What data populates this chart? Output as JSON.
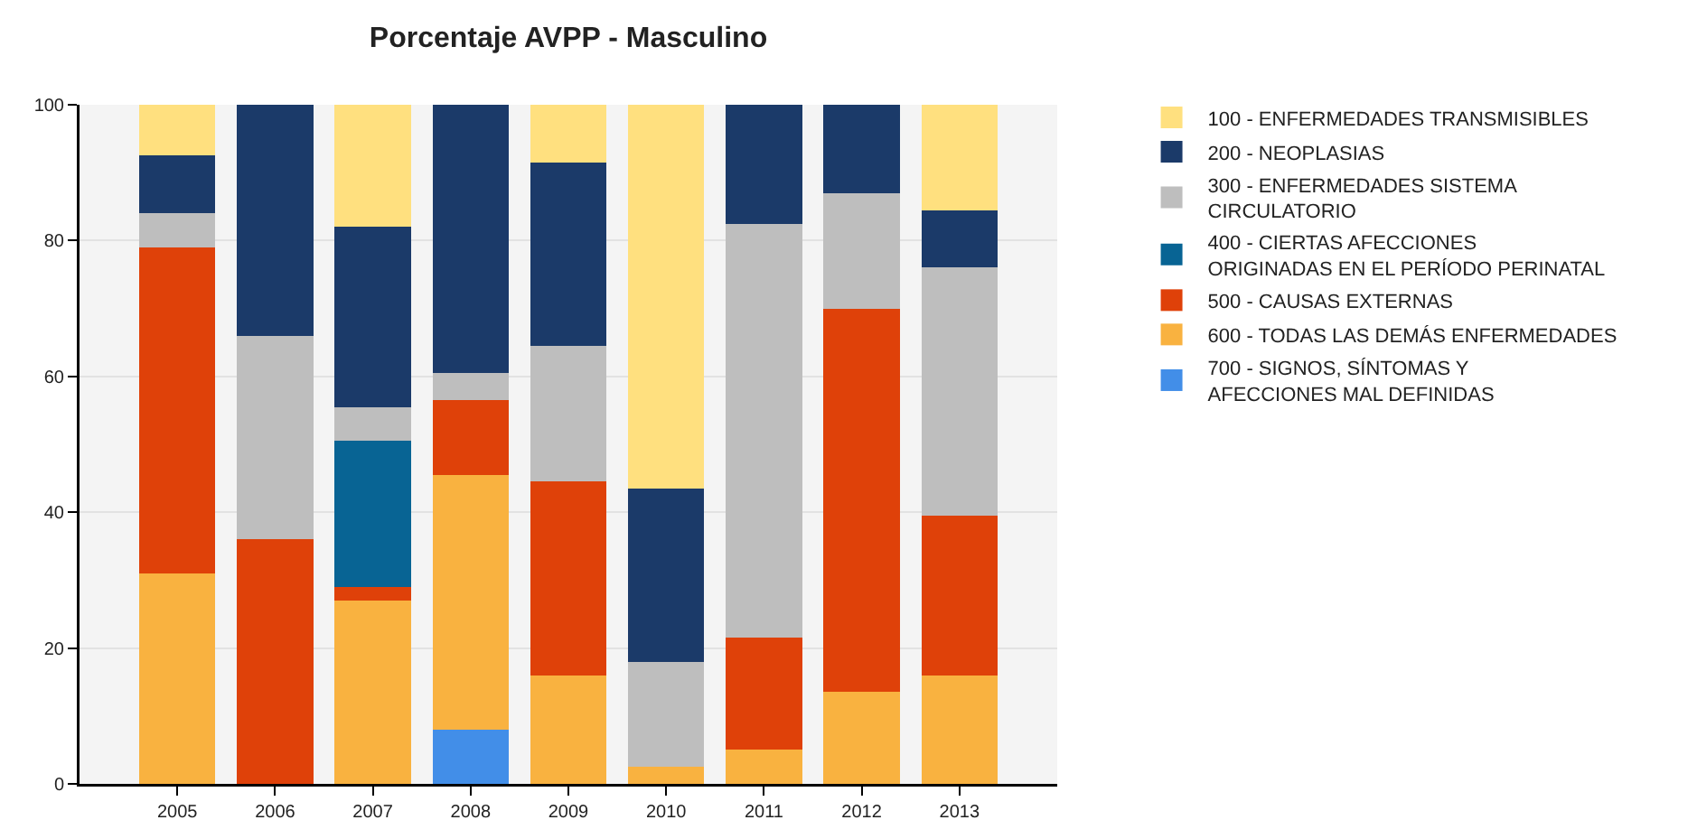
{
  "chart_data": {
    "type": "bar",
    "title": "Porcentaje AVPP - Masculino",
    "categories": [
      "2005",
      "2006",
      "2007",
      "2008",
      "2009",
      "2010",
      "2011",
      "2012",
      "2013"
    ],
    "stacked": true,
    "series": [
      {
        "name": "700 - SIGNOS, SÍNTOMAS Y AFECCIONES MAL DEFINIDAS",
        "color": "#428ee8",
        "values": [
          null,
          null,
          null,
          8,
          null,
          null,
          null,
          null,
          null
        ]
      },
      {
        "name": "600 - TODAS LAS DEMÁS ENFERMEDADES",
        "color": "#f9b240",
        "values": [
          31,
          null,
          27,
          37.5,
          16,
          2.5,
          5,
          13.5,
          16
        ]
      },
      {
        "name": "500 - CAUSAS EXTERNAS",
        "color": "#df4109",
        "values": [
          48,
          36,
          2,
          11,
          28.5,
          null,
          16.5,
          56.5,
          23.5
        ]
      },
      {
        "name": "400 - CIERTAS AFECCIONES ORIGINADAS EN EL PERÍODO PERINATAL",
        "color": "#086494",
        "values": [
          null,
          null,
          21.5,
          null,
          null,
          null,
          null,
          null,
          null
        ]
      },
      {
        "name": "300 - ENFERMEDADES SISTEMA CIRCULATORIO",
        "color": "#bebebe",
        "values": [
          5,
          30,
          5,
          4,
          20,
          15.5,
          61,
          17,
          36.5
        ]
      },
      {
        "name": "200 - NEOPLASIAS",
        "color": "#1b3a69",
        "values": [
          8.5,
          34,
          26.5,
          39.5,
          27,
          25.5,
          17.5,
          13,
          8.5
        ]
      },
      {
        "name": "100 - ENFERMEDADES TRANSMISIBLES",
        "color": "#ffe07f",
        "values": [
          7.5,
          null,
          18,
          null,
          8.5,
          56.5,
          null,
          null,
          15.5
        ]
      }
    ],
    "ylim": [
      0,
      100
    ],
    "yticks": [
      0,
      20,
      40,
      60,
      80,
      100
    ],
    "grid": "y",
    "legend": "top right"
  }
}
